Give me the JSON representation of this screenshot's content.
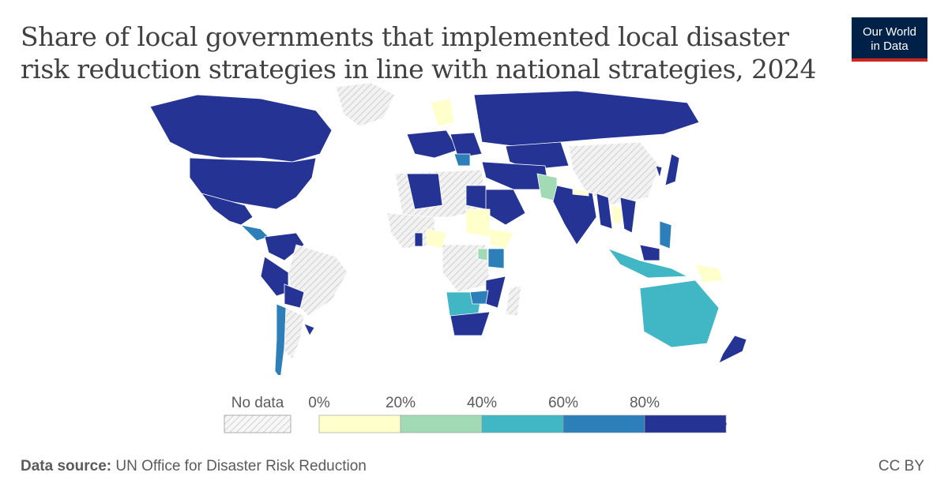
{
  "title_line1": "Share of local governments that implemented local disaster",
  "title_line2": "risk reduction strategies in line with national strategies, 2024",
  "logo": {
    "line1": "Our World",
    "line2": "in Data"
  },
  "legend": {
    "no_data_label": "No data",
    "ticks": [
      "0%",
      "20%",
      "40%",
      "60%",
      "80%"
    ],
    "bins": [
      {
        "range": "0-20%",
        "color": "#ffffcc"
      },
      {
        "range": "20-40%",
        "color": "#a1dab4"
      },
      {
        "range": "40-60%",
        "color": "#41b6c4"
      },
      {
        "range": "60-80%",
        "color": "#2c7fb8"
      },
      {
        "range": "80-100%",
        "color": "#253494"
      }
    ],
    "no_data_color": "#dcdcdc"
  },
  "footer": {
    "source_label": "Data source:",
    "source": "UN Office for Disaster Risk Reduction"
  },
  "license": "CC BY"
}
